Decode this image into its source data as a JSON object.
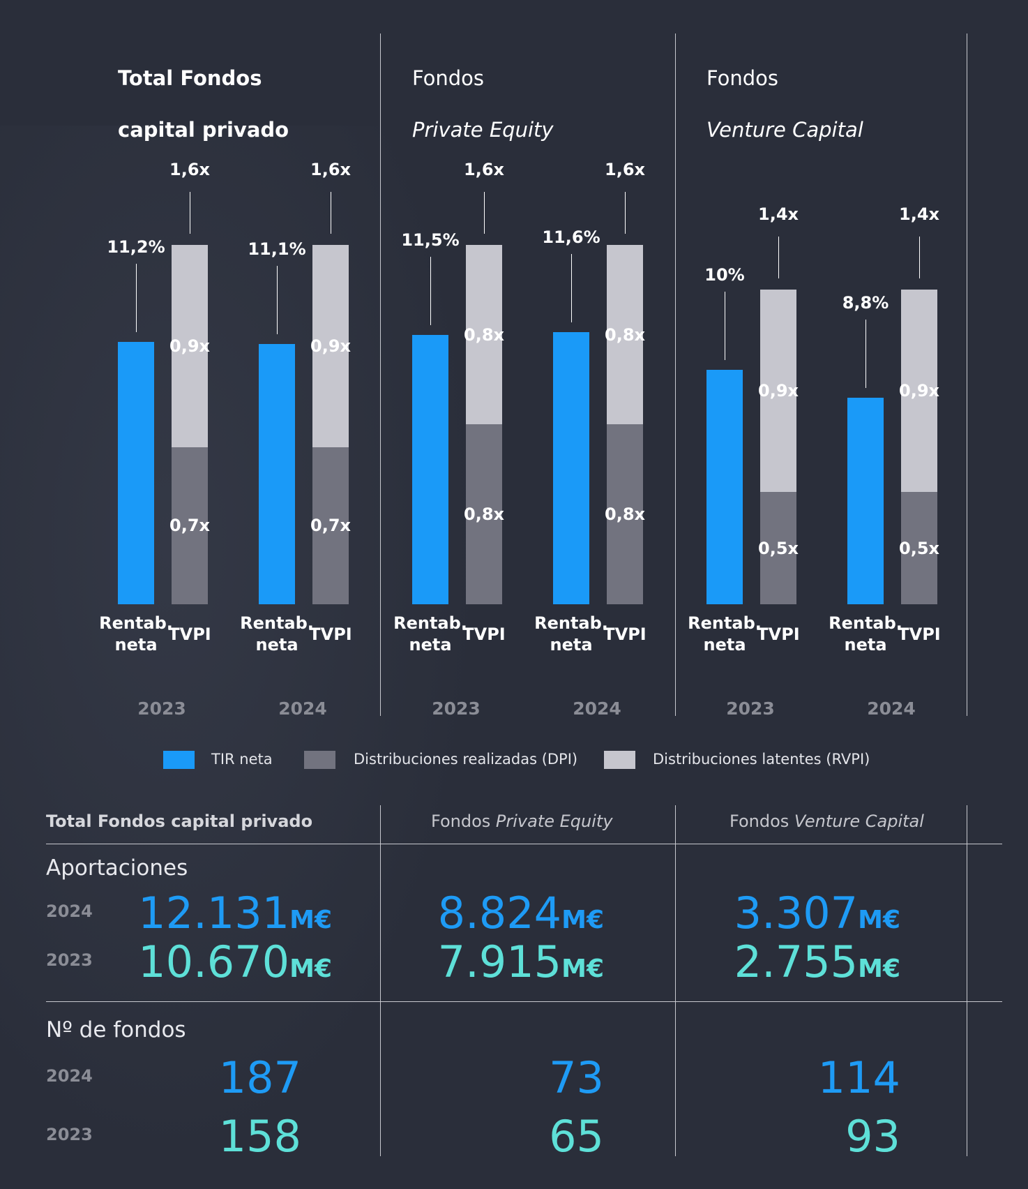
{
  "colors": {
    "background": "#2a2e3a",
    "tir": "#1a9af8",
    "dpi": "#72737f",
    "rvpi": "#c6c6ce",
    "value_2024": "#1e9bf5",
    "value_2023": "#5ee0d8",
    "year_label": "#8b8d96"
  },
  "chart_data": {
    "type": "bar",
    "stacked": true,
    "panels": [
      {
        "title_line1": "Total Fondos",
        "title_line2": "capital privado",
        "groups": [
          {
            "year": "2023",
            "tir_label": "11,2%",
            "tir": 11.2,
            "tvpi_label": "1,6x",
            "tvpi": 1.6,
            "dpi_label": "0,7x",
            "dpi": 0.7,
            "rvpi_label": "0,9x",
            "rvpi": 0.9
          },
          {
            "year": "2024",
            "tir_label": "11,1%",
            "tir": 11.1,
            "tvpi_label": "1,6x",
            "tvpi": 1.6,
            "dpi_label": "0,7x",
            "dpi": 0.7,
            "rvpi_label": "0,9x",
            "rvpi": 0.9
          }
        ]
      },
      {
        "title_line1": "Fondos",
        "title_line2": "Private Equity",
        "groups": [
          {
            "year": "2023",
            "tir_label": "11,5%",
            "tir": 11.5,
            "tvpi_label": "1,6x",
            "tvpi": 1.6,
            "dpi_label": "0,8x",
            "dpi": 0.8,
            "rvpi_label": "0,8x",
            "rvpi": 0.8
          },
          {
            "year": "2024",
            "tir_label": "11,6%",
            "tir": 11.6,
            "tvpi_label": "1,6x",
            "tvpi": 1.6,
            "dpi_label": "0,8x",
            "dpi": 0.8,
            "rvpi_label": "0,8x",
            "rvpi": 0.8
          }
        ]
      },
      {
        "title_line1": "Fondos",
        "title_line2": "Venture Capital",
        "groups": [
          {
            "year": "2023",
            "tir_label": "10%",
            "tir": 10.0,
            "tvpi_label": "1,4x",
            "tvpi": 1.4,
            "dpi_label": "0,5x",
            "dpi": 0.5,
            "rvpi_label": "0,9x",
            "rvpi": 0.9
          },
          {
            "year": "2024",
            "tir_label": "8,8%",
            "tir": 8.8,
            "tvpi_label": "1,4x",
            "tvpi": 1.4,
            "dpi_label": "0,5x",
            "dpi": 0.5,
            "rvpi_label": "0,9x",
            "rvpi": 0.9
          }
        ]
      }
    ],
    "category_tir_line1": "Rentab.",
    "category_tir_line2": "neta",
    "category_tvpi": "TVPI",
    "legend": [
      {
        "label": "TIR neta",
        "color": "#1a9af8"
      },
      {
        "label": "Distribuciones realizadas (DPI)",
        "color": "#72737f"
      },
      {
        "label": "Distribuciones latentes (RVPI)",
        "color": "#c6c6ce"
      }
    ]
  },
  "table": {
    "headers": [
      {
        "plain": "Total Fondos capital privado",
        "italic": ""
      },
      {
        "plain": "Fondos ",
        "italic": "Private Equity"
      },
      {
        "plain": "Fondos ",
        "italic": "Venture Capital"
      }
    ],
    "aportaciones": {
      "title": "Aportaciones",
      "year_a": "2024",
      "year_b": "2023",
      "unit": "M€",
      "values_2024": [
        "12.131",
        "8.824",
        "3.307"
      ],
      "values_2023": [
        "10.670",
        "7.915",
        "2.755"
      ]
    },
    "fondos": {
      "title": "Nº de fondos",
      "year_a": "2024",
      "year_b": "2023",
      "values_2024": [
        "187",
        "73",
        "114"
      ],
      "values_2023": [
        "158",
        "65",
        "93"
      ]
    }
  }
}
